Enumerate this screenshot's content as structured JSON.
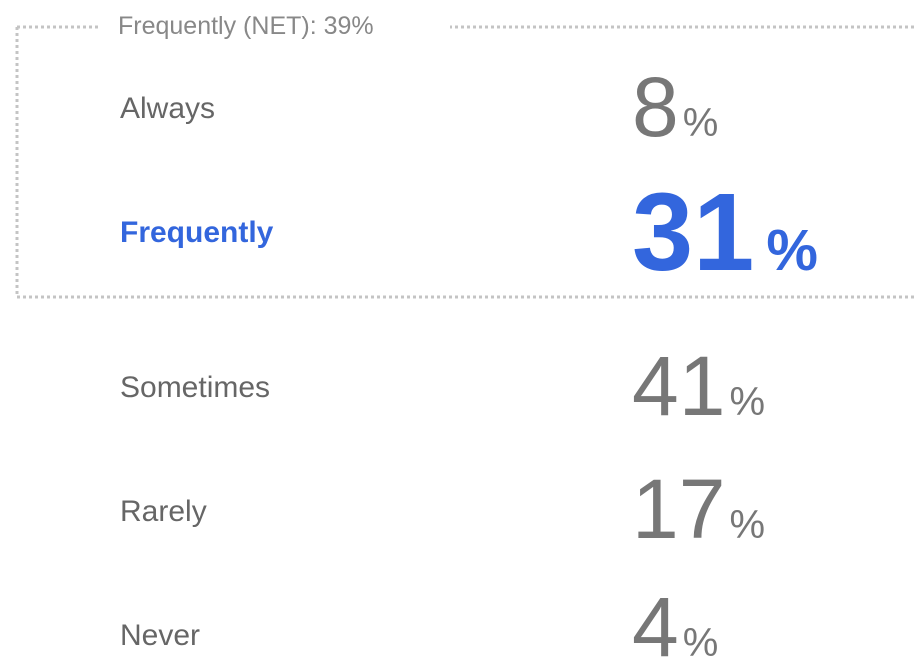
{
  "net": {
    "label": "Frequently (NET): 39%"
  },
  "rows": [
    {
      "label": "Always",
      "value": 8,
      "unit": "%",
      "emphasis": false
    },
    {
      "label": "Frequently",
      "value": 31,
      "unit": "%",
      "emphasis": true
    },
    {
      "label": "Sometimes",
      "value": 41,
      "unit": "%",
      "emphasis": false
    },
    {
      "label": "Rarely",
      "value": 17,
      "unit": "%",
      "emphasis": false
    },
    {
      "label": "Never",
      "value": 4,
      "unit": "%",
      "emphasis": false
    }
  ]
}
